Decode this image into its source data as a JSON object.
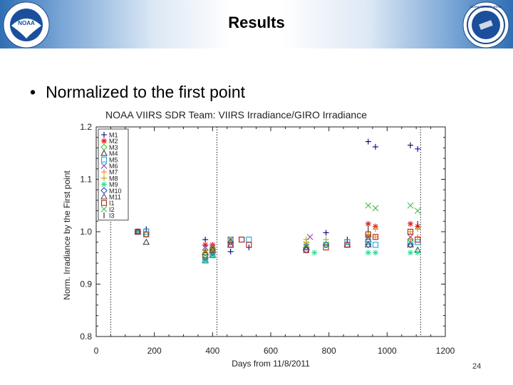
{
  "slide": {
    "title": "Results",
    "bullet": "Normalized to the first point",
    "page_number": "24"
  },
  "logos": {
    "left": {
      "name": "noaa-logo",
      "text": "NOAA"
    },
    "right": {
      "name": "noaa-nesdis-star-logo",
      "text": "NOAA NESDIS STAR"
    }
  },
  "colors": {
    "header_blue": "#2f6fb3",
    "axis": "#222222"
  },
  "chart_data": {
    "type": "scatter",
    "title": "NOAA VIIRS SDR Team: VIIRS Irradiance/GIRO Irradiance",
    "xlabel": "Days from 11/8/2011",
    "ylabel": "Norm. Irradiance by the First point",
    "xlim": [
      0,
      1200
    ],
    "ylim": [
      0.8,
      1.2
    ],
    "xticks": [
      "0",
      "200",
      "400",
      "600",
      "800",
      "1000",
      "1200"
    ],
    "yticks": [
      "0.8",
      "0.9",
      "1.0",
      "1.1",
      "1.2"
    ],
    "vlines": [
      50,
      415,
      1115
    ],
    "legend_position": "top-left",
    "series": [
      {
        "name": "M1",
        "color": "#00008b",
        "marker": "plus",
        "x": [
          143,
          172,
          375,
          400,
          462,
          525,
          722,
          790,
          863,
          935,
          960,
          1080,
          1105
        ],
        "y": [
          1.0,
          1.005,
          0.985,
          0.962,
          0.962,
          0.97,
          0.975,
          0.998,
          0.985,
          1.172,
          1.162,
          1.165,
          1.158
        ]
      },
      {
        "name": "M2",
        "color": "#e8191a",
        "marker": "star",
        "x": [
          375,
          400,
          935,
          960,
          1080,
          1105
        ],
        "y": [
          0.975,
          0.975,
          1.015,
          1.01,
          1.015,
          1.01
        ]
      },
      {
        "name": "M3",
        "color": "#33cc33",
        "marker": "diamond",
        "x": [
          143,
          172,
          375,
          400,
          462,
          722,
          935,
          1080
        ],
        "y": [
          1.0,
          0.995,
          0.965,
          0.965,
          0.98,
          0.97,
          0.99,
          0.985
        ]
      },
      {
        "name": "M4",
        "color": "#444444",
        "marker": "triangle",
        "x": [
          143,
          172,
          375,
          400,
          462,
          722,
          863,
          935,
          1080,
          1105
        ],
        "y": [
          1.0,
          0.98,
          0.945,
          0.955,
          0.975,
          0.97,
          0.975,
          0.985,
          0.975,
          0.965
        ]
      },
      {
        "name": "M5",
        "color": "#11aadd",
        "marker": "square",
        "x": [
          143,
          172,
          375,
          400,
          462,
          500,
          525,
          722,
          790,
          863,
          935,
          960,
          1080,
          1105
        ],
        "y": [
          1.0,
          1.0,
          0.945,
          0.955,
          0.985,
          0.985,
          0.985,
          0.965,
          0.975,
          0.98,
          0.98,
          0.975,
          0.98,
          0.98
        ]
      },
      {
        "name": "M6",
        "color": "#8844aa",
        "marker": "x",
        "x": [
          143,
          375,
          400,
          462,
          735,
          935,
          1080
        ],
        "y": [
          1.0,
          0.97,
          0.97,
          0.985,
          0.99,
          0.99,
          0.99
        ]
      },
      {
        "name": "M7",
        "color": "#ff8800",
        "marker": "plus",
        "x": [
          143,
          375,
          400,
          462,
          722,
          935,
          960,
          1080,
          1105
        ],
        "y": [
          1.0,
          0.965,
          0.965,
          0.985,
          0.98,
          0.995,
          0.99,
          0.985,
          0.99
        ]
      },
      {
        "name": "M8",
        "color": "#aaaa00",
        "marker": "plus",
        "x": [
          143,
          375,
          400,
          462,
          722,
          790,
          935,
          960,
          1080,
          1105
        ],
        "y": [
          1.0,
          0.965,
          0.97,
          0.985,
          0.985,
          0.985,
          0.995,
          1.005,
          1.0,
          1.005
        ]
      },
      {
        "name": "M9",
        "color": "#33dd99",
        "marker": "star",
        "x": [
          143,
          375,
          400,
          750,
          935,
          960,
          1080,
          1105
        ],
        "y": [
          1.0,
          0.945,
          0.955,
          0.96,
          0.96,
          0.96,
          0.96,
          0.96
        ]
      },
      {
        "name": "M10",
        "color": "#3355cc",
        "marker": "diamond",
        "x": [
          143,
          375,
          400,
          462,
          722,
          790,
          935,
          1080
        ],
        "y": [
          1.0,
          0.95,
          0.96,
          0.98,
          0.965,
          0.975,
          0.975,
          0.975
        ]
      },
      {
        "name": "M11",
        "color": "#555555",
        "marker": "triangle",
        "x": [
          143,
          375,
          400,
          722,
          935,
          1080
        ],
        "y": [
          1.0,
          0.96,
          0.965,
          0.97,
          0.975,
          0.975
        ]
      },
      {
        "name": "I1",
        "color": "#aa2222",
        "marker": "square",
        "x": [
          143,
          172,
          375,
          400,
          462,
          500,
          525,
          722,
          790,
          863,
          935,
          960,
          1080,
          1105
        ],
        "y": [
          1.0,
          0.995,
          0.955,
          0.965,
          0.975,
          0.985,
          0.975,
          0.965,
          0.97,
          0.975,
          0.995,
          0.99,
          1.0,
          0.985
        ]
      },
      {
        "name": "I2",
        "color": "#44bb44",
        "marker": "x",
        "x": [
          375,
          400,
          722,
          790,
          935,
          960,
          1080,
          1105
        ],
        "y": [
          0.955,
          0.965,
          0.975,
          0.975,
          1.05,
          1.045,
          1.05,
          1.04
        ]
      },
      {
        "name": "I3",
        "color": "#222222",
        "marker": "bar",
        "x": [
          935,
          1080,
          1105
        ],
        "y": [
          1.005,
          1.165,
          1.015
        ]
      }
    ]
  }
}
